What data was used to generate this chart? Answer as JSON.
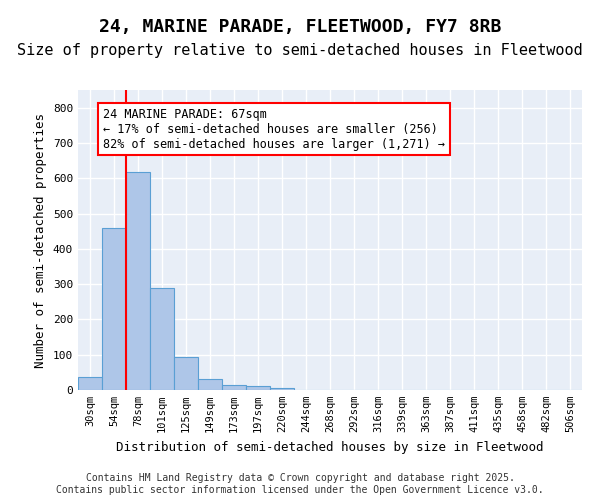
{
  "title_line1": "24, MARINE PARADE, FLEETWOOD, FY7 8RB",
  "title_line2": "Size of property relative to semi-detached houses in Fleetwood",
  "xlabel": "Distribution of semi-detached houses by size in Fleetwood",
  "ylabel": "Number of semi-detached properties",
  "bar_values": [
    38,
    460,
    617,
    290,
    93,
    32,
    15,
    10,
    6,
    0,
    0,
    0,
    0,
    0,
    0,
    0,
    0,
    0,
    0,
    0,
    0
  ],
  "bin_labels": [
    "30sqm",
    "54sqm",
    "78sqm",
    "101sqm",
    "125sqm",
    "149sqm",
    "173sqm",
    "197sqm",
    "220sqm",
    "244sqm",
    "268sqm",
    "292sqm",
    "316sqm",
    "339sqm",
    "363sqm",
    "387sqm",
    "411sqm",
    "435sqm",
    "458sqm",
    "482sqm",
    "506sqm"
  ],
  "bar_color": "#aec6e8",
  "bar_edge_color": "#5a9fd4",
  "vline_x": 1.5,
  "vline_color": "red",
  "annotation_text": "24 MARINE PARADE: 67sqm\n← 17% of semi-detached houses are smaller (256)\n82% of semi-detached houses are larger (1,271) →",
  "annotation_box_color": "white",
  "annotation_box_edge": "red",
  "ylim": [
    0,
    850
  ],
  "yticks": [
    0,
    100,
    200,
    300,
    400,
    500,
    600,
    700,
    800
  ],
  "background_color": "#e8eef7",
  "grid_color": "white",
  "footer_text": "Contains HM Land Registry data © Crown copyright and database right 2025.\nContains public sector information licensed under the Open Government Licence v3.0.",
  "title_fontsize": 13,
  "subtitle_fontsize": 11,
  "axis_label_fontsize": 9,
  "tick_fontsize": 7.5,
  "annotation_fontsize": 8.5,
  "footer_fontsize": 7
}
